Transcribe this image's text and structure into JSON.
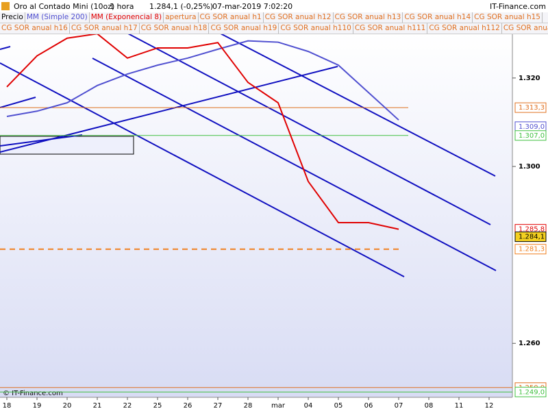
{
  "chart_data": {
    "type": "line",
    "header": {
      "title": "Oro al Contado Mini (10oz)",
      "interval": "1 hora",
      "quote": "1.284,1 (-0,25%)",
      "datetime": "07-mar-2019 7:02:20",
      "brand": "IT-Finance.com"
    },
    "legend_first": {
      "text": "Precio",
      "color": "#000000"
    },
    "legend_rest": [
      [
        {
          "text": "apertura",
          "color": "#e07020"
        },
        {
          "text": "CG SOR anual h1",
          "color": "#e07020"
        },
        {
          "text": "CG SOR anual h12",
          "color": "#e07020"
        },
        {
          "text": "CG SOR anual h13",
          "color": "#e07020"
        },
        {
          "text": "CG SOR anual h14",
          "color": "#e07020"
        },
        {
          "text": "CG SOR anual h15",
          "color": "#e07020"
        }
      ],
      [
        {
          "text": "CG SOR anual h16",
          "color": "#e07020"
        },
        {
          "text": "CG SOR anual h17",
          "color": "#e07020"
        },
        {
          "text": "CG SOR anual h18",
          "color": "#e07020"
        },
        {
          "text": "CG SOR anual h19",
          "color": "#e07020"
        },
        {
          "text": "CG SOR anual h110",
          "color": "#e07020"
        },
        {
          "text": "CG SOR anual h111",
          "color": "#e07020"
        },
        {
          "text": "CG SOR anual h112",
          "color": "#e07020"
        },
        {
          "text": "CG SOR anual",
          "color": "#e07020"
        }
      ]
    ],
    "categories": [
      "18",
      "19",
      "20",
      "21",
      "22",
      "25",
      "26",
      "27",
      "28",
      "mar",
      "04",
      "05",
      "06",
      "07",
      "08",
      "11",
      "12"
    ],
    "series": [
      {
        "name": "MM (Simple 200)",
        "color": "#5050d0",
        "values": [
          1.3113,
          1.3125,
          1.3144,
          1.3183,
          1.3209,
          1.3229,
          1.3245,
          1.3265,
          1.3284,
          1.3281,
          1.326,
          1.3229,
          1.3167,
          1.3105,
          null,
          null,
          null
        ]
      },
      {
        "name": "MM (Exponencial 8)",
        "color": "#e00000",
        "values": [
          1.318,
          1.325,
          1.329,
          1.33,
          1.3245,
          1.3268,
          1.3268,
          1.328,
          1.319,
          1.3144,
          1.2966,
          1.2873,
          1.2873,
          1.2858,
          null,
          null,
          null
        ]
      }
    ],
    "levels": [
      {
        "value": 1.3133,
        "label": "1.313,3",
        "color": "#e07020",
        "dash": false
      },
      {
        "value": 1.309,
        "label": "1.309,0",
        "color": "#5050d0",
        "dash": false
      },
      {
        "value": 1.307,
        "label": "1.307,0",
        "color": "#40c040",
        "dash": false
      },
      {
        "value": 1.2858,
        "label": "1.285,8",
        "color": "#e00000",
        "dash": false
      },
      {
        "value": 1.2841,
        "label": "1.284,1",
        "color": "#000000",
        "dash": false
      },
      {
        "value": 1.2813,
        "label": "1.281,3",
        "color": "#f08020",
        "dash": true
      },
      {
        "value": 1.25,
        "label": "1.250,0",
        "color": "#e07020",
        "dash": false
      },
      {
        "value": 1.249,
        "label": "1.249,0",
        "color": "#40c040",
        "dash": false
      }
    ],
    "ylim": [
      1.2478,
      1.3302
    ],
    "yticks": [
      {
        "value": 1.32,
        "label": "1.320"
      },
      {
        "value": 1.3,
        "label": "1.300"
      },
      {
        "value": 1.26,
        "label": "1.260"
      }
    ],
    "footer": "© IT-Finance.com"
  }
}
